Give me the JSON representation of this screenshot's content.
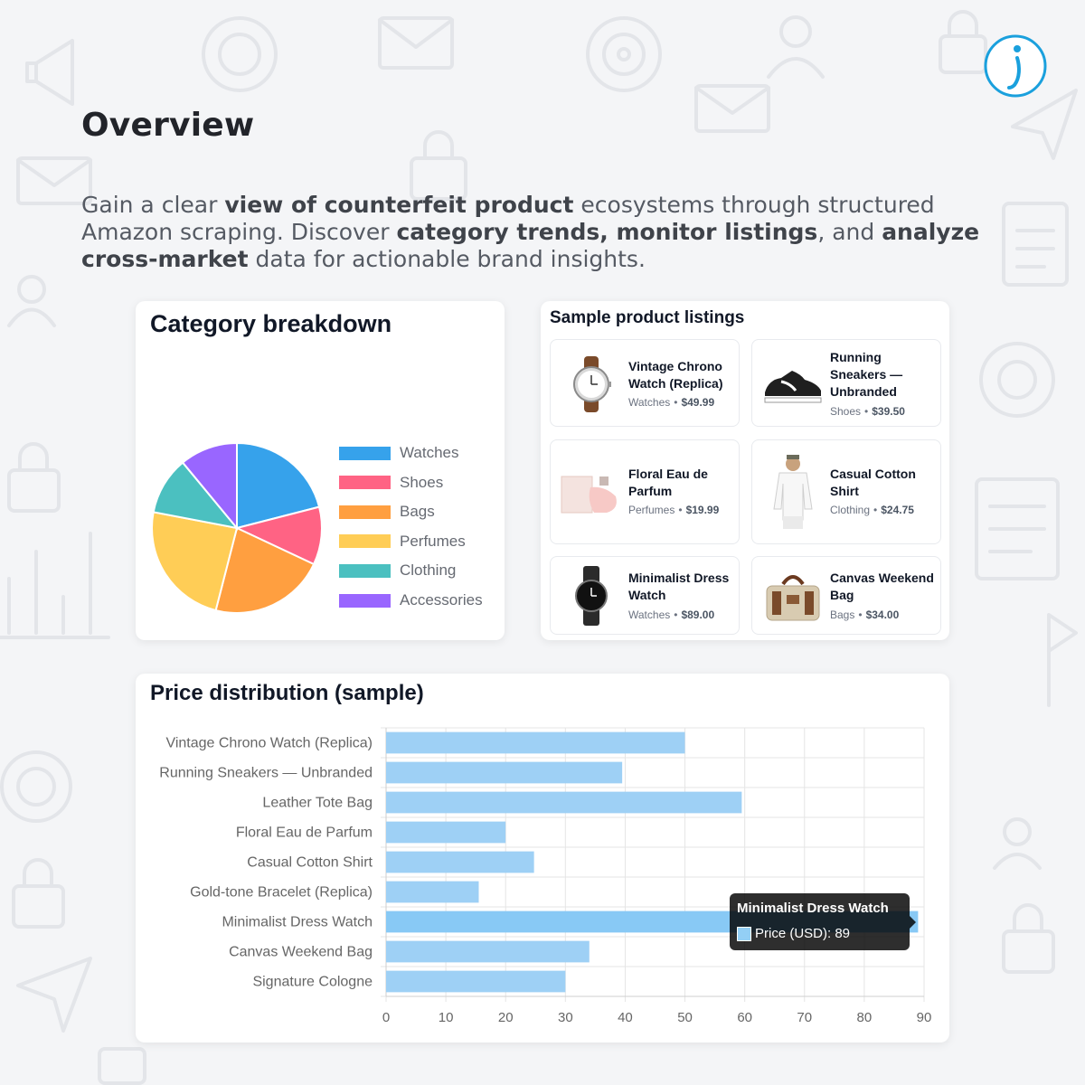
{
  "header": {
    "title": "Overview",
    "intro": [
      {
        "t": "Gain a clear ",
        "b": false
      },
      {
        "t": "view of counterfeit product",
        "b": true
      },
      {
        "t": " ecosystems through structured Amazon scraping. Discover ",
        "b": false
      },
      {
        "t": "category trends, monitor listings",
        "b": true
      },
      {
        "t": ", and ",
        "b": false
      },
      {
        "t": "analyze cross-market",
        "b": true
      },
      {
        "t": " data for actionable brand insights.",
        "b": false
      }
    ]
  },
  "colors": {
    "accent_logo": "#1aa0dd",
    "bar_fill": "#9ed0f5",
    "bar_highlight": "#88c9f5"
  },
  "pie_card": {
    "title": "Category breakdown",
    "chart_data": {
      "type": "pie",
      "title": "Category breakdown",
      "legend_position": "right",
      "slices": [
        {
          "label": "Watches",
          "value": 21,
          "color": "#36a2eb"
        },
        {
          "label": "Shoes",
          "value": 11,
          "color": "#ff6384"
        },
        {
          "label": "Bags",
          "value": 22,
          "color": "#ff9f40"
        },
        {
          "label": "Perfumes",
          "value": 24,
          "color": "#ffcd56"
        },
        {
          "label": "Clothing",
          "value": 11,
          "color": "#4bc0c0"
        },
        {
          "label": "Accessories",
          "value": 11,
          "color": "#9966ff"
        }
      ]
    }
  },
  "listings": {
    "title": "Sample product listings",
    "items": [
      {
        "name": "Vintage Chrono Watch (Replica)",
        "category": "Watches",
        "price": "$49.99",
        "icon": "watch-icon"
      },
      {
        "name": "Running Sneakers — Unbranded",
        "category": "Shoes",
        "price": "$39.50",
        "icon": "sneaker-icon"
      },
      {
        "name": "Floral Eau de Parfum",
        "category": "Perfumes",
        "price": "$19.99",
        "icon": "perfume-icon"
      },
      {
        "name": "Casual Cotton Shirt",
        "category": "Clothing",
        "price": "$24.75",
        "icon": "shirt-icon"
      },
      {
        "name": "Minimalist Dress Watch",
        "category": "Watches",
        "price": "$89.00",
        "icon": "dress-watch-icon"
      },
      {
        "name": "Canvas Weekend Bag",
        "category": "Bags",
        "price": "$34.00",
        "icon": "bag-icon"
      }
    ]
  },
  "bar_card": {
    "title": "Price distribution (sample)",
    "chart_data": {
      "type": "bar",
      "orientation": "horizontal",
      "title": "Price distribution (sample)",
      "categories": [
        "Vintage Chrono Watch (Replica)",
        "Running Sneakers — Unbranded",
        "Leather Tote Bag",
        "Floral Eau de Parfum",
        "Casual Cotton Shirt",
        "Gold-tone Bracelet (Replica)",
        "Minimalist Dress Watch",
        "Canvas Weekend Bag",
        "Signature Cologne"
      ],
      "series": [
        {
          "values": [
            49.99,
            39.5,
            59.5,
            19.99,
            24.75,
            15.5,
            89,
            34,
            30
          ]
        }
      ],
      "xlim": [
        0,
        90
      ],
      "xticks": [
        "0",
        "10",
        "20",
        "30",
        "40",
        "50",
        "60",
        "70",
        "80",
        "90"
      ],
      "grid": true,
      "legend": false
    },
    "tooltip": {
      "title": "Minimalist Dress Watch",
      "body": "Price (USD): 89"
    }
  }
}
